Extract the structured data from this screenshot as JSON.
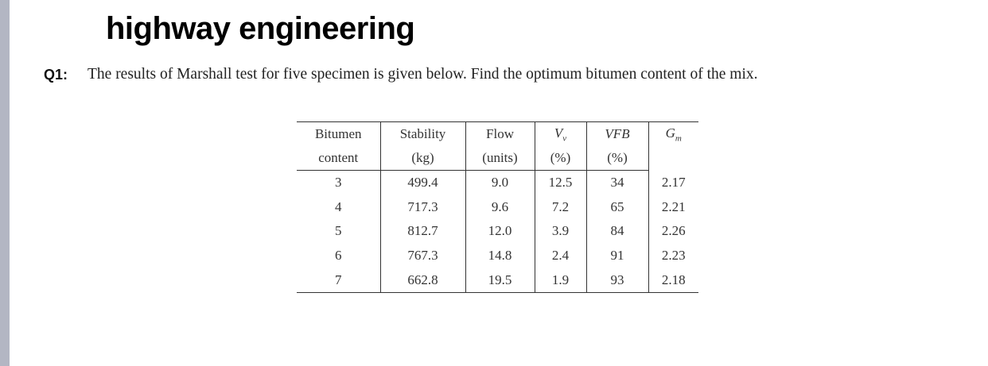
{
  "header": {
    "title": "highway engineering"
  },
  "question": {
    "label": "Q1:",
    "text": "The results of Marshall test for five specimen is given below. Find the optimum bitumen content of the mix."
  },
  "table": {
    "headers": [
      {
        "top": "Bitumen",
        "bottom": "content"
      },
      {
        "top": "Stability",
        "bottom": "(kg)"
      },
      {
        "top": "Flow",
        "bottom": "(units)"
      },
      {
        "top": {
          "base": "V",
          "sub": "v"
        },
        "bottom": "(%)"
      },
      {
        "top": "VFB",
        "bottom": "(%)"
      },
      {
        "top": {
          "base": "G",
          "sub": "m"
        }
      }
    ],
    "rows": [
      [
        "3",
        "499.4",
        "9.0",
        "12.5",
        "34",
        "2.17"
      ],
      [
        "4",
        "717.3",
        "9.6",
        "7.2",
        "65",
        "2.21"
      ],
      [
        "5",
        "812.7",
        "12.0",
        "3.9",
        "84",
        "2.26"
      ],
      [
        "6",
        "767.3",
        "14.8",
        "2.4",
        "91",
        "2.23"
      ],
      [
        "7",
        "662.8",
        "19.5",
        "1.9",
        "93",
        "2.18"
      ]
    ]
  }
}
